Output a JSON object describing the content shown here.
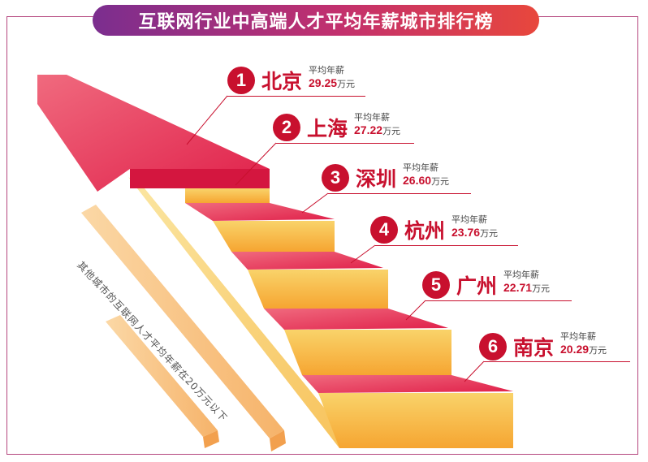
{
  "title": "互联网行业中高端人才平均年薪城市排行榜",
  "salary_label": "平均年薪",
  "unit": "万元",
  "note": "其他城市的互联网人才平均年薪在20万元以下",
  "colors": {
    "accent": "#c8102e",
    "title_start": "#7b2e8f",
    "title_end": "#e8473c",
    "stair_top": "#e8305a",
    "stair_riser": "#f7b23a"
  },
  "ranking": [
    {
      "rank": "1",
      "city": "北京",
      "salary": "29.25"
    },
    {
      "rank": "2",
      "city": "上海",
      "salary": "27.22"
    },
    {
      "rank": "3",
      "city": "深圳",
      "salary": "26.60"
    },
    {
      "rank": "4",
      "city": "杭州",
      "salary": "23.76"
    },
    {
      "rank": "5",
      "city": "广州",
      "salary": "22.71"
    },
    {
      "rank": "6",
      "city": "南京",
      "salary": "20.29"
    }
  ]
}
